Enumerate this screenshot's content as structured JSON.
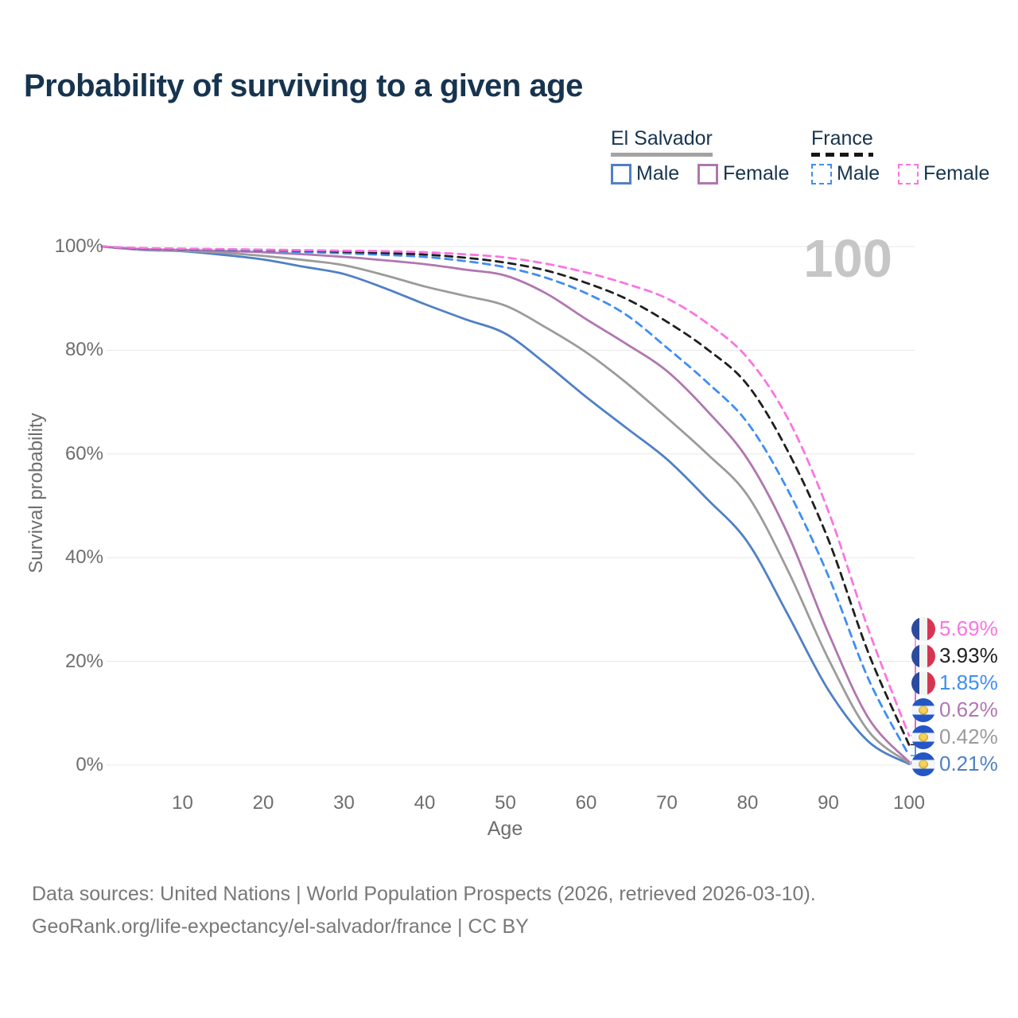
{
  "header": {
    "title": "Probability of surviving to a given age"
  },
  "legend": {
    "el_salvador": {
      "title": "El Salvador",
      "male": "Male",
      "female": "Female"
    },
    "france": {
      "title": "France",
      "male": "Male",
      "female": "Female"
    }
  },
  "footer": {
    "line1": "Data sources: United Nations | World Population Prospects (2026, retrieved 2026-03-10).",
    "line2": "GeoRank.org/life-expectancy/el-salvador/france | CC BY"
  },
  "chart_data": {
    "type": "line",
    "title": "Probability of surviving to a given age",
    "xlabel": "Age",
    "ylabel": "Survival probability",
    "age_counter": "100",
    "xlim": [
      0,
      100
    ],
    "ylim": [
      0,
      100
    ],
    "grid": "horizontal",
    "legend_position": "top-right",
    "x_ticks": [
      10,
      20,
      30,
      40,
      50,
      60,
      70,
      80,
      90,
      100
    ],
    "y_ticks": [
      0,
      20,
      40,
      60,
      80,
      100
    ],
    "ages": [
      0,
      5,
      10,
      15,
      20,
      25,
      30,
      35,
      40,
      45,
      50,
      55,
      60,
      65,
      70,
      75,
      80,
      85,
      90,
      95,
      100
    ],
    "series": [
      {
        "name": "El Salvador Male",
        "country": "El Salvador",
        "sex": "Male",
        "style": "solid",
        "color": "#4f80c5",
        "flag": "el-salvador",
        "end_label": "0.21%",
        "values": [
          100,
          99.35,
          99.1,
          98.4,
          97.5,
          96.1,
          94.7,
          92.0,
          88.9,
          86.0,
          83.2,
          77.4,
          71.0,
          65.0,
          59.0,
          51.3,
          43.0,
          29.0,
          14.5,
          4.5,
          0.21
        ]
      },
      {
        "name": "El Salvador Both sexes",
        "country": "El Salvador",
        "sex": "Both",
        "style": "solid",
        "color": "#9b9b9b",
        "flag": "el-salvador",
        "end_label": "0.42%",
        "values": [
          100,
          99.4,
          99.2,
          98.8,
          98.2,
          97.4,
          96.4,
          94.5,
          92.3,
          90.5,
          88.6,
          84.4,
          79.6,
          73.7,
          67.0,
          60.0,
          52.0,
          37.5,
          20.5,
          6.5,
          0.42
        ]
      },
      {
        "name": "El Salvador Female",
        "country": "El Salvador",
        "sex": "Female",
        "style": "solid",
        "color": "#b077af",
        "flag": "el-salvador",
        "end_label": "0.62%",
        "values": [
          100,
          99.5,
          99.35,
          99.15,
          98.9,
          98.5,
          98.0,
          97.35,
          96.6,
          95.55,
          94.4,
          91.0,
          86.0,
          81.2,
          76.0,
          68.3,
          59.0,
          44.5,
          25.5,
          9.0,
          0.62
        ]
      },
      {
        "name": "France Male",
        "country": "France",
        "sex": "Male",
        "style": "dashed",
        "color": "#3f8ef3",
        "flag": "france",
        "end_label": "1.85%",
        "values": [
          100,
          99.6,
          99.5,
          99.35,
          99.15,
          98.95,
          98.7,
          98.4,
          98.0,
          97.2,
          96.0,
          94.0,
          91.0,
          86.8,
          80.5,
          73.8,
          66.0,
          53.0,
          36.5,
          16.5,
          1.85
        ]
      },
      {
        "name": "France Both sexes",
        "country": "France",
        "sex": "Both",
        "style": "dashed",
        "color": "#1f1f1f",
        "flag": "france",
        "end_label": "3.93%",
        "values": [
          100,
          99.65,
          99.55,
          99.45,
          99.35,
          99.2,
          99.0,
          98.75,
          98.45,
          97.85,
          96.9,
          95.4,
          93.0,
          89.9,
          85.5,
          80.2,
          73.3,
          60.5,
          43.5,
          21.5,
          3.93
        ]
      },
      {
        "name": "France Female",
        "country": "France",
        "sex": "Female",
        "style": "dashed",
        "color": "#fb74e1",
        "flag": "france",
        "end_label": "5.69%",
        "values": [
          100,
          99.7,
          99.6,
          99.5,
          99.4,
          99.3,
          99.2,
          99.1,
          98.9,
          98.5,
          97.9,
          96.7,
          95.0,
          92.8,
          90.0,
          85.2,
          78.5,
          66.8,
          49.0,
          26.0,
          5.69
        ]
      }
    ]
  }
}
